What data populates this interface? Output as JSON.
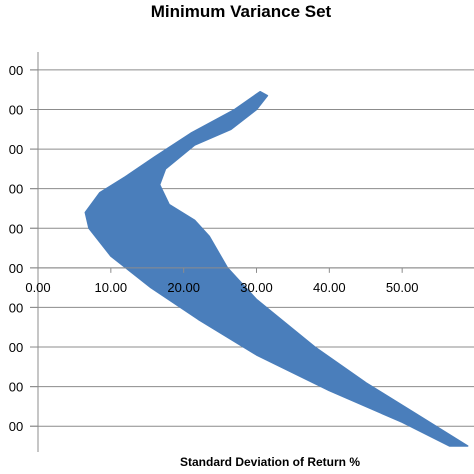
{
  "chart_data": {
    "type": "area",
    "title": "Minimum Variance Set",
    "xlabel": "Standard Deviation of Return %",
    "ylabel": "",
    "xlim": [
      0,
      60
    ],
    "ylim": [
      -0.5,
      9.25
    ],
    "grid": true,
    "x_ticks": [
      "0.00",
      "10.00",
      "20.00",
      "30.00",
      "40.00",
      "50.00"
    ],
    "y_tick_labels": [
      "00",
      "00",
      "00",
      "00",
      "00",
      "00",
      "00",
      "00",
      "00",
      "00"
    ],
    "y_tick_positions": [
      9,
      8,
      7,
      6,
      5,
      4,
      3,
      2,
      1,
      0
    ],
    "series_color": "#4a7ebb",
    "series": [
      {
        "region": "min-variance-band",
        "outline": [
          [
            31.5,
            8.35
          ],
          [
            30.0,
            8.0
          ],
          [
            26.5,
            7.5
          ],
          [
            21.5,
            7.1
          ],
          [
            17.5,
            6.5
          ],
          [
            16.7,
            6.1
          ],
          [
            18.0,
            5.6
          ],
          [
            21.5,
            5.2
          ],
          [
            23.5,
            4.8
          ],
          [
            26.0,
            4.0
          ],
          [
            30.0,
            3.2
          ],
          [
            38.0,
            2.0
          ],
          [
            45.0,
            1.1
          ],
          [
            52.0,
            0.3
          ],
          [
            59.0,
            -0.5
          ],
          [
            56.5,
            -0.5
          ],
          [
            50.0,
            0.1
          ],
          [
            40.0,
            0.9
          ],
          [
            30.0,
            1.8
          ],
          [
            22.0,
            2.7
          ],
          [
            15.5,
            3.5
          ],
          [
            10.0,
            4.3
          ],
          [
            7.0,
            5.0
          ],
          [
            6.5,
            5.4
          ],
          [
            8.5,
            5.9
          ],
          [
            12.0,
            6.3
          ],
          [
            16.0,
            6.8
          ],
          [
            21.0,
            7.4
          ],
          [
            27.0,
            8.0
          ],
          [
            30.5,
            8.45
          ]
        ]
      }
    ]
  }
}
